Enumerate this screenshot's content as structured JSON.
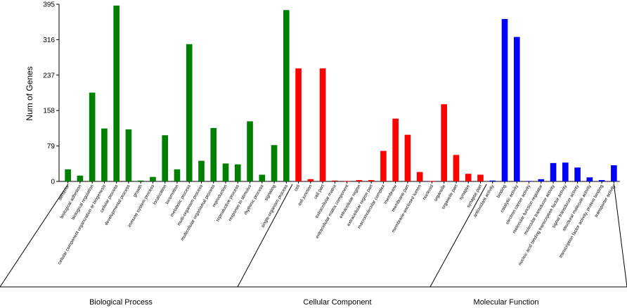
{
  "chart_data": {
    "type": "bar",
    "ylabel": "Num of Genes",
    "ylim": [
      0,
      395
    ],
    "yticks": [
      0,
      79,
      158,
      237,
      316,
      395
    ],
    "grid": false,
    "groups": [
      {
        "name": "Biological Process",
        "color": "#008000",
        "categories": [
          "behavior",
          "biological adhesion",
          "biological regulation",
          "cellular component organization or biogenesis",
          "cellular process",
          "developmental process",
          "growth",
          "immune system process",
          "localization",
          "locomotion",
          "metabolic process",
          "multi-organism process",
          "multicellular organismal process",
          "reproduction",
          "reproductive process",
          "response to stimulus",
          "rhythmic process",
          "signaling",
          "single-organism process"
        ],
        "values": [
          27,
          13,
          198,
          118,
          392,
          116,
          2,
          10,
          103,
          27,
          306,
          46,
          119,
          40,
          38,
          134,
          15,
          81,
          382
        ]
      },
      {
        "name": "Cellular Component",
        "color": "#ff0000",
        "categories": [
          "cell",
          "cell junction",
          "cell part",
          "extracellular matrix",
          "extracellular matrix component",
          "extracellular region",
          "extracellular region part",
          "macromolecular complex",
          "membrane",
          "membrane part",
          "membrane-enclosed lumen",
          "nucleoid",
          "organelle",
          "organelle part",
          "synapse",
          "synapse part"
        ],
        "values": [
          252,
          5,
          252,
          2,
          1,
          3,
          3,
          68,
          140,
          104,
          21,
          1,
          172,
          59,
          17,
          15
        ]
      },
      {
        "name": "Molecular Function",
        "color": "#0000ff",
        "categories": [
          "antioxidant activity",
          "binding",
          "catalytic activity",
          "electron carrier activity",
          "molecular function regulator",
          "molecular transducer activity",
          "nucleic acid binding transcription factor activity",
          "signal transducer activity",
          "structural molecule activity",
          "transcription factor activity, protein binding",
          "transporter activity"
        ],
        "values": [
          2,
          362,
          322,
          1,
          5,
          41,
          42,
          31,
          9,
          3,
          36
        ]
      }
    ]
  }
}
